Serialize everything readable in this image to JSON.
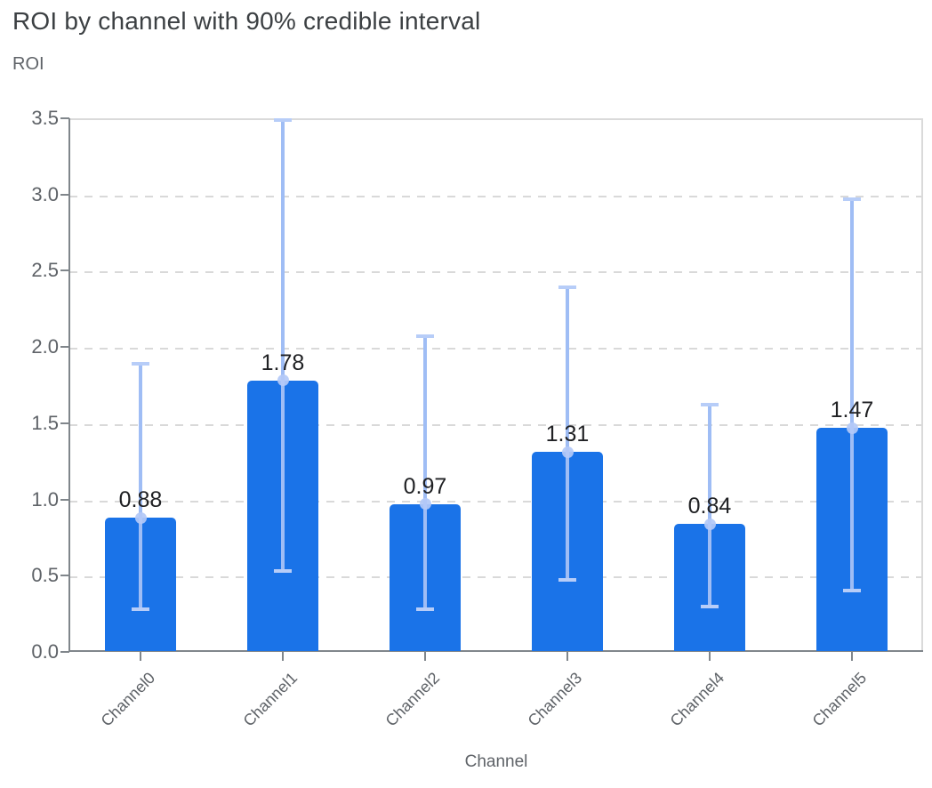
{
  "chart": {
    "title": "ROI by channel with 90% credible interval",
    "y_axis_title": "ROI",
    "x_axis_title": "Channel"
  },
  "chart_data": {
    "type": "bar",
    "title": "ROI by channel with 90% credible interval",
    "xlabel": "Channel",
    "ylabel": "ROI",
    "categories": [
      "Channel0",
      "Channel1",
      "Channel2",
      "Channel3",
      "Channel4",
      "Channel5"
    ],
    "series": [
      {
        "name": "roi_mean",
        "values": [
          0.88,
          1.78,
          0.97,
          1.31,
          0.84,
          1.47
        ]
      },
      {
        "name": "ci_90_lower",
        "values": [
          0.28,
          0.53,
          0.28,
          0.47,
          0.3,
          0.4
        ]
      },
      {
        "name": "ci_90_upper",
        "values": [
          1.89,
          3.49,
          2.07,
          2.39,
          1.62,
          2.97
        ]
      }
    ],
    "bar_labels": [
      "0.88",
      "1.78",
      "0.97",
      "1.31",
      "0.84",
      "1.47"
    ],
    "yticks": [
      "0.0",
      "0.5",
      "1.0",
      "1.5",
      "2.0",
      "2.5",
      "3.0",
      "3.5"
    ],
    "ylim": [
      0,
      3.5
    ],
    "grid": "horizontal-dashed",
    "legend_position": "none",
    "error_bars": "90% credible interval with caps and mean marker",
    "colors": {
      "bar": "#1a73e8",
      "error_line": "#9fbdf5",
      "error_cap": "#b7cdf8",
      "mean_marker": "#b3c9f7",
      "gridline": "#d9d9d9",
      "axis_line": "#80868b",
      "title_text": "#3c4043",
      "axis_text": "#5f6368",
      "value_label_text": "#202124"
    }
  }
}
